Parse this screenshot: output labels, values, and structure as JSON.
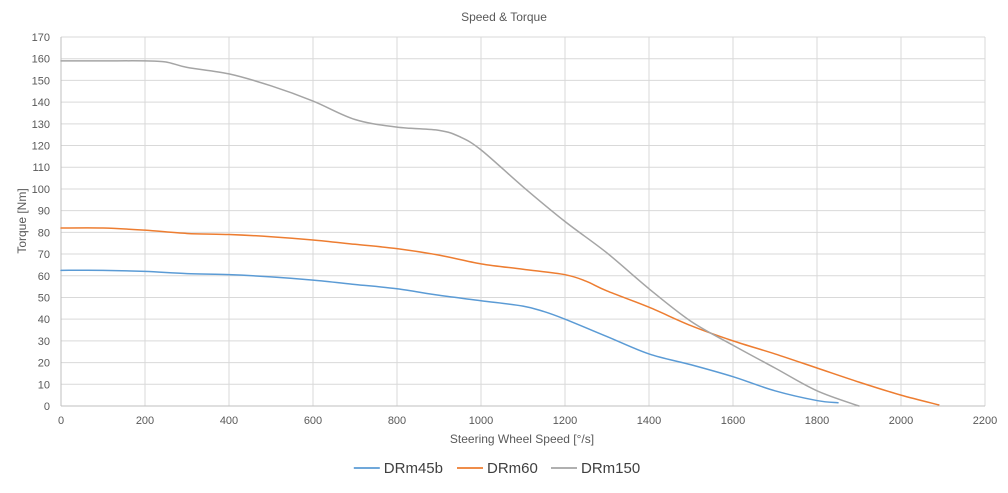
{
  "chart_data": {
    "type": "line",
    "title": "Speed & Torque",
    "xlabel": "Steering Wheel Speed [°/s]",
    "ylabel": "Torque [Nm]",
    "xlim": [
      0,
      2200
    ],
    "ylim": [
      0,
      170
    ],
    "x_ticks": [
      0,
      200,
      400,
      600,
      800,
      1000,
      1200,
      1400,
      1600,
      1800,
      2000,
      2200
    ],
    "y_ticks": [
      0,
      10,
      20,
      30,
      40,
      50,
      60,
      70,
      80,
      90,
      100,
      110,
      120,
      130,
      140,
      150,
      160,
      170
    ],
    "grid": true,
    "legend_position": "bottom",
    "series": [
      {
        "name": "DRm45b",
        "color": "#5b9bd5",
        "x": [
          0,
          100,
          200,
          300,
          400,
          500,
          600,
          700,
          800,
          900,
          1000,
          1100,
          1150,
          1200,
          1300,
          1400,
          1500,
          1600,
          1700,
          1800,
          1850
        ],
        "y": [
          62.5,
          62.5,
          62,
          61,
          60.5,
          59.5,
          58,
          56,
          54,
          51,
          48.5,
          46,
          43.5,
          40,
          32,
          24,
          19,
          13.5,
          7,
          2.5,
          1.5
        ]
      },
      {
        "name": "DRm60",
        "color": "#ed7d31",
        "x": [
          0,
          100,
          200,
          300,
          400,
          500,
          600,
          700,
          800,
          900,
          1000,
          1100,
          1200,
          1250,
          1300,
          1400,
          1500,
          1600,
          1700,
          1800,
          1900,
          2000,
          2090
        ],
        "y": [
          82,
          82,
          81,
          79.5,
          79,
          78,
          76.5,
          74.5,
          72.5,
          69.5,
          65.5,
          63,
          60.5,
          57.5,
          53,
          45.5,
          37,
          30,
          24,
          17.5,
          11,
          5,
          0.5
        ]
      },
      {
        "name": "DRm150",
        "color": "#a5a5a5",
        "x": [
          0,
          100,
          200,
          250,
          300,
          400,
          500,
          600,
          700,
          800,
          900,
          950,
          1000,
          1100,
          1200,
          1300,
          1400,
          1500,
          1600,
          1700,
          1800,
          1900
        ],
        "y": [
          159,
          159,
          159,
          158.5,
          156,
          153,
          147.5,
          140.5,
          132,
          128.5,
          127,
          124,
          118,
          101,
          85,
          70.5,
          54,
          39,
          28,
          17.5,
          7,
          0
        ]
      }
    ]
  }
}
